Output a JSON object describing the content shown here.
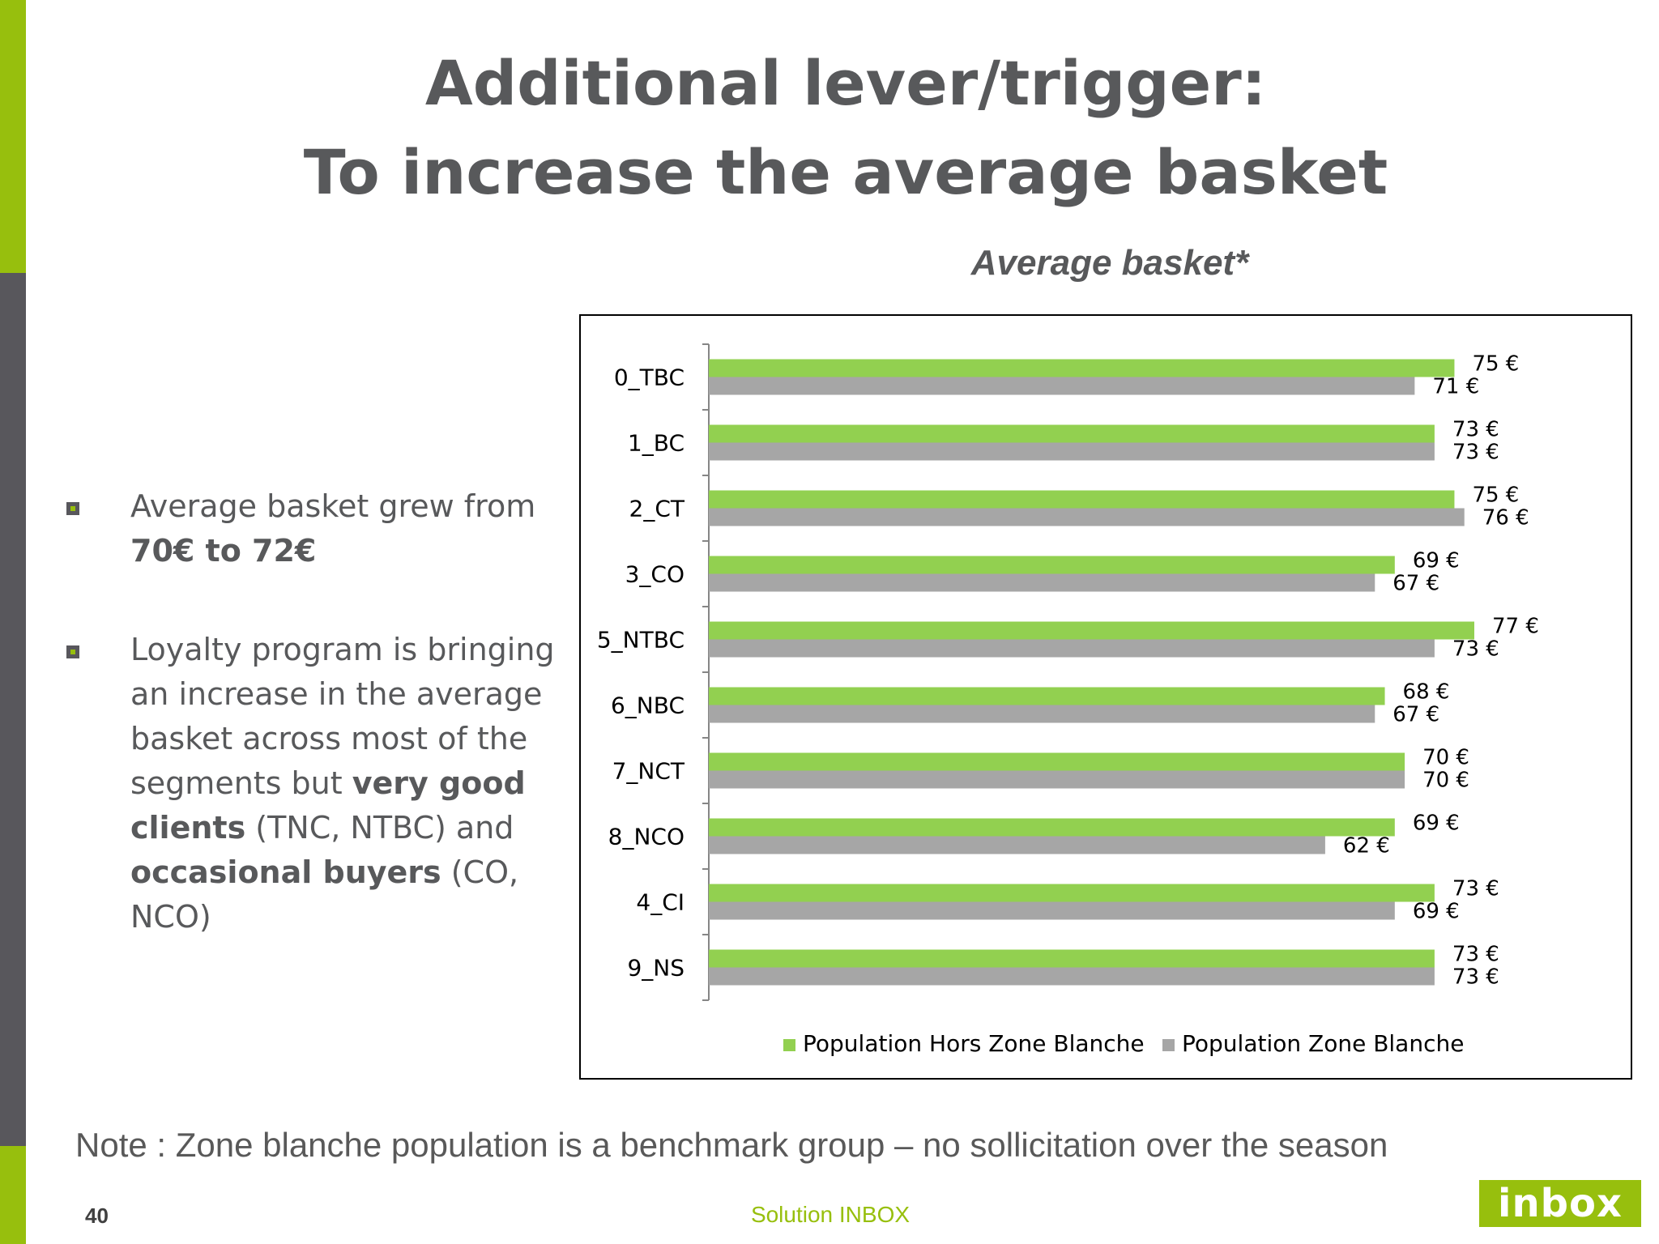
{
  "slide": {
    "title_line1": "Additional lever/trigger:",
    "title_line2": "To increase the average basket",
    "chart_heading": "Average basket*",
    "bullets": [
      {
        "text_plain": "Average basket grew from ",
        "text_bold": "70€ to 72€"
      },
      {
        "text_a": "Loyalty program is bringing an increase in the average basket across most of the segments but ",
        "bold_a": "very good clients",
        "text_b": " (TNC, NTBC) and ",
        "bold_b": "occasional buyers",
        "text_c": " (CO, NCO)"
      }
    ],
    "note": "Note : Zone blanche population is a benchmark group – no sollicitation over the season",
    "page_number": "40",
    "footer_text": "Solution INBOX",
    "logo_text": "inbox"
  },
  "colors": {
    "brand_green": "#97bf0d",
    "sidebar_gray": "#58575c",
    "series_green": "#92d050",
    "series_gray": "#a6a6a6"
  },
  "chart_data": {
    "type": "bar",
    "orientation": "horizontal",
    "categories": [
      "0_TBC",
      "1_BC",
      "2_CT",
      "3_CO",
      "5_NTBC",
      "6_NBC",
      "7_NCT",
      "8_NCO",
      "4_CI",
      "9_NS"
    ],
    "series": [
      {
        "name": "Population Hors Zone Blanche",
        "values": [
          75,
          73,
          75,
          69,
          77,
          68,
          70,
          69,
          73,
          73
        ],
        "labels": [
          "75 €",
          "73 €",
          "75 €",
          "69 €",
          "77 €",
          "68 €",
          "70 €",
          "69 €",
          "73 €",
          "73 €"
        ]
      },
      {
        "name": "Population Zone Blanche",
        "values": [
          71,
          73,
          76,
          67,
          73,
          67,
          70,
          62,
          69,
          73
        ],
        "labels": [
          "71 €",
          "73 €",
          "76 €",
          "67 €",
          "73 €",
          "67 €",
          "70 €",
          "62 €",
          "69 €",
          "73 €"
        ]
      }
    ],
    "xlim": [
      0,
      77
    ],
    "grid": false,
    "legend": "bottom"
  }
}
